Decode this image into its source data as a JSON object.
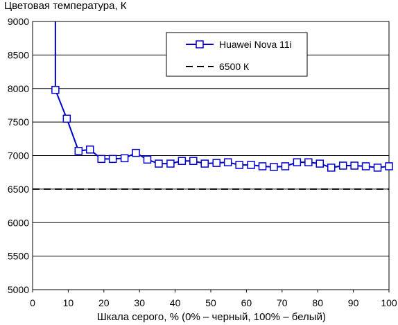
{
  "chart_data": {
    "type": "line",
    "ylabel": "Цветовая температура, К",
    "xlabel": "Шкала серого, % (0% – черный, 100% – белый)",
    "xlim": [
      0,
      100
    ],
    "ylim": [
      5000,
      9000
    ],
    "xticks": [
      0,
      10,
      20,
      30,
      40,
      50,
      60,
      70,
      80,
      90,
      100
    ],
    "yticks": [
      5000,
      5500,
      6000,
      6500,
      7000,
      7500,
      8000,
      8500,
      9000
    ],
    "grid": "horizontal",
    "legend_position": "top-right",
    "series": [
      {
        "name": "Huawei Nova 11i",
        "color": "#0000c8",
        "marker": "square",
        "lead_in": {
          "x": 6.4,
          "y": 9000
        },
        "x": [
          6.4,
          9.6,
          12.9,
          16.1,
          19.3,
          22.5,
          25.8,
          29.0,
          32.2,
          35.4,
          38.7,
          41.9,
          45.1,
          48.3,
          51.6,
          54.8,
          58.0,
          61.3,
          64.5,
          67.7,
          70.9,
          74.2,
          77.4,
          80.6,
          83.8,
          87.1,
          90.3,
          93.5,
          96.8,
          100
        ],
        "values": [
          7980,
          7550,
          7070,
          7090,
          6950,
          6950,
          6960,
          7040,
          6940,
          6880,
          6880,
          6920,
          6920,
          6880,
          6890,
          6900,
          6860,
          6860,
          6840,
          6830,
          6840,
          6900,
          6900,
          6880,
          6820,
          6850,
          6850,
          6840,
          6820,
          6840
        ]
      },
      {
        "name": "6500 К",
        "color": "#000000",
        "style": "dashed",
        "x": [
          0,
          100
        ],
        "values": [
          6500,
          6500
        ]
      }
    ]
  }
}
